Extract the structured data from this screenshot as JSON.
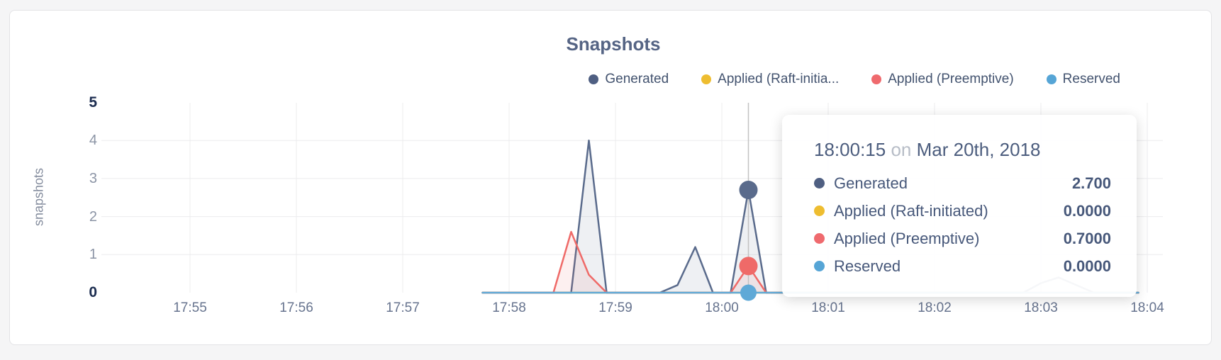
{
  "chart": {
    "title": "Snapshots",
    "y_axis": {
      "label": "snapshots"
    },
    "legend": [
      {
        "label": "Generated",
        "color": "#4f5f82"
      },
      {
        "label": "Applied (Raft-initia...",
        "color": "#eebd30"
      },
      {
        "label": "Applied (Preemptive)",
        "color": "#ef6a6e"
      },
      {
        "label": "Reserved",
        "color": "#56a5d6"
      }
    ]
  },
  "tooltip": {
    "time": "18:00:15",
    "on_word": "on",
    "date": "Mar 20th, 2018",
    "rows": [
      {
        "label": "Generated",
        "value": "2.700",
        "color": "#4f5f82"
      },
      {
        "label": "Applied (Raft-initiated)",
        "value": "0.0000",
        "color": "#eebd30"
      },
      {
        "label": "Applied (Preemptive)",
        "value": "0.7000",
        "color": "#ef6a6e"
      },
      {
        "label": "Reserved",
        "value": "0.0000",
        "color": "#56a5d6"
      }
    ]
  },
  "chart_data": {
    "type": "area",
    "title": "Snapshots",
    "ylabel": "snapshots",
    "ylim": [
      0,
      5
    ],
    "y_ticks": [
      0,
      1,
      2,
      3,
      4,
      5
    ],
    "x_ticks": [
      "17:55",
      "17:56",
      "17:57",
      "17:58",
      "17:59",
      "18:00",
      "18:01",
      "18:02",
      "18:03",
      "18:04"
    ],
    "x_unit": "points are [seconds after 17:55:00, snapshots]; data spans ~17:57:45 to ~18:03:55",
    "grid": true,
    "legend_position": "top-right",
    "series": [
      {
        "name": "Generated",
        "color": "#5a6b8c",
        "fill": "rgba(90,107,140,0.10)",
        "points": [
          [
            165,
            0
          ],
          [
            215,
            0
          ],
          [
            225,
            4
          ],
          [
            235,
            0
          ],
          [
            265,
            0
          ],
          [
            275,
            0.2
          ],
          [
            285,
            1.2
          ],
          [
            295,
            0
          ],
          [
            305,
            0
          ],
          [
            315,
            2.7
          ],
          [
            325,
            0
          ],
          [
            470,
            0
          ],
          [
            480,
            0.25
          ],
          [
            490,
            0.4
          ],
          [
            500,
            0.2
          ],
          [
            510,
            0
          ],
          [
            535,
            0
          ]
        ]
      },
      {
        "name": "Applied (Raft-initiated)",
        "color": "#edbe2c",
        "fill": null,
        "points": [
          [
            165,
            0
          ],
          [
            535,
            0
          ]
        ]
      },
      {
        "name": "Applied (Preemptive)",
        "color": "#ef6a68",
        "fill": "rgba(239,106,104,0.10)",
        "points": [
          [
            165,
            0
          ],
          [
            205,
            0
          ],
          [
            215,
            1.6
          ],
          [
            225,
            0.47
          ],
          [
            235,
            0
          ],
          [
            305,
            0
          ],
          [
            315,
            0.7
          ],
          [
            325,
            0
          ],
          [
            535,
            0
          ]
        ]
      },
      {
        "name": "Reserved",
        "color": "#5fa9d7",
        "fill": null,
        "points": [
          [
            165,
            0
          ],
          [
            535,
            0
          ]
        ]
      }
    ],
    "hover": {
      "time": "18:00:15",
      "t": 315,
      "values": {
        "Generated": 2.7,
        "Applied (Raft-initiated)": 0,
        "Applied (Preemptive)": 0.7,
        "Reserved": 0
      }
    }
  }
}
